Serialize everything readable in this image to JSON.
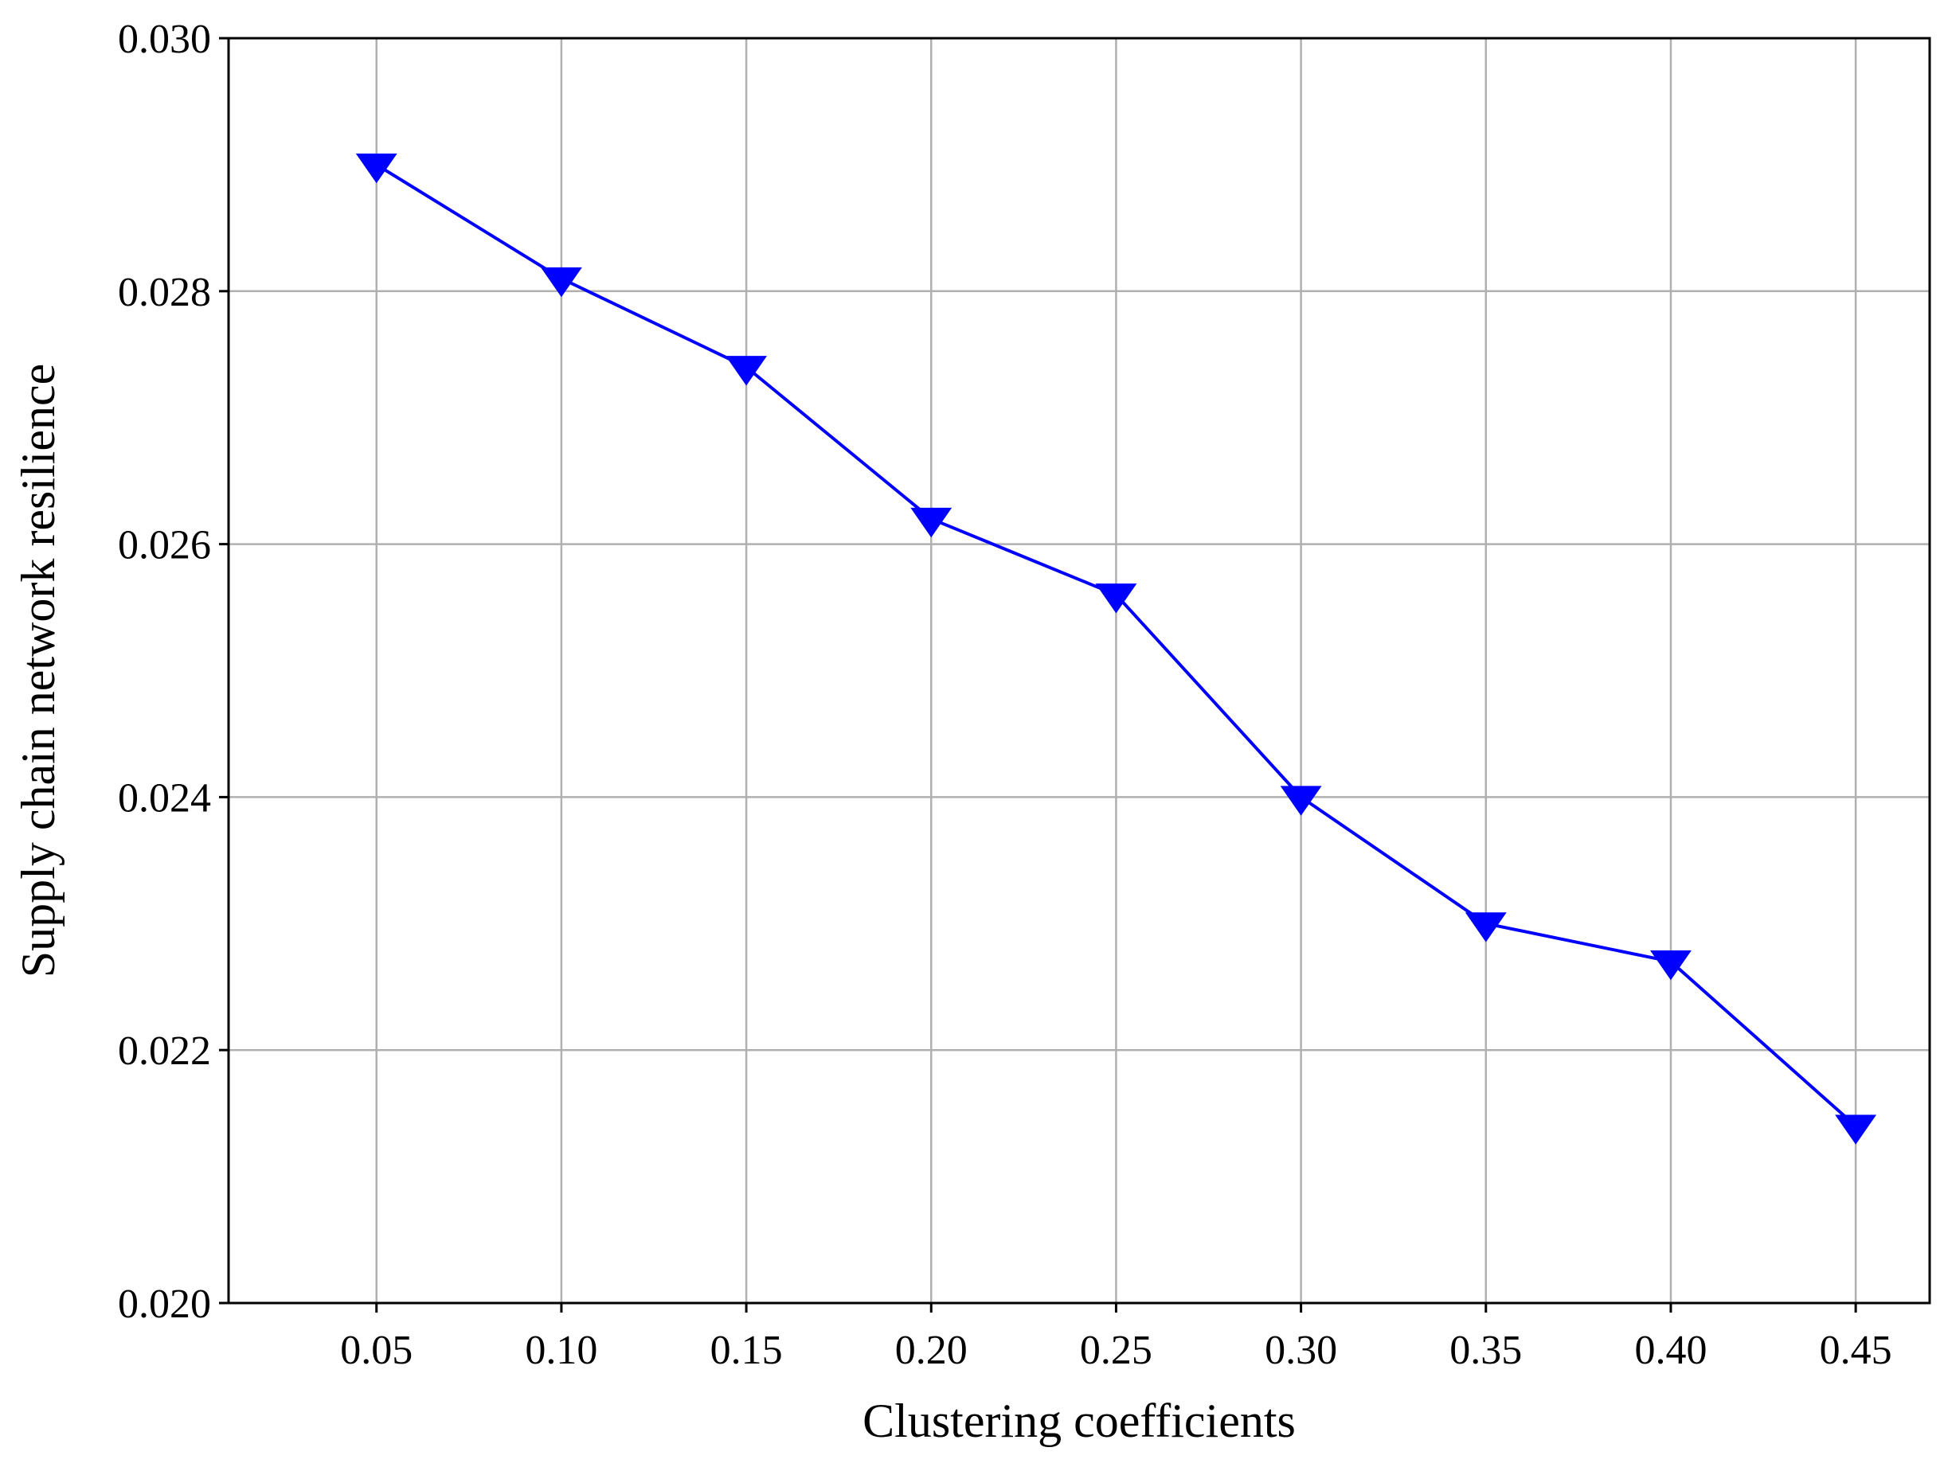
{
  "chart_data": {
    "type": "line",
    "title": "",
    "xlabel": "Clustering coefficients",
    "ylabel": "Supply chain network resilience",
    "x": [
      0.05,
      0.1,
      0.15,
      0.2,
      0.25,
      0.3,
      0.35,
      0.4,
      0.45
    ],
    "x_tick_labels": [
      "0.05",
      "0.10",
      "0.15",
      "0.20",
      "0.25",
      "0.30",
      "0.35",
      "0.40",
      "0.45"
    ],
    "series": [
      {
        "values": [
          0.029,
          0.0281,
          0.0274,
          0.0262,
          0.0256,
          0.024,
          0.023,
          0.0227,
          0.0214
        ],
        "color": "#0000ff",
        "marker": "triangle-down"
      }
    ],
    "xlim": [
      0.01,
      0.47
    ],
    "ylim": [
      0.02,
      0.03
    ],
    "y_ticks": [
      0.02,
      0.022,
      0.024,
      0.026,
      0.028,
      0.03
    ],
    "y_tick_labels": [
      "0.020",
      "0.022",
      "0.024",
      "0.026",
      "0.028",
      "0.030"
    ],
    "grid": true,
    "grid_color": "#b0b0b0",
    "legend": "none"
  }
}
